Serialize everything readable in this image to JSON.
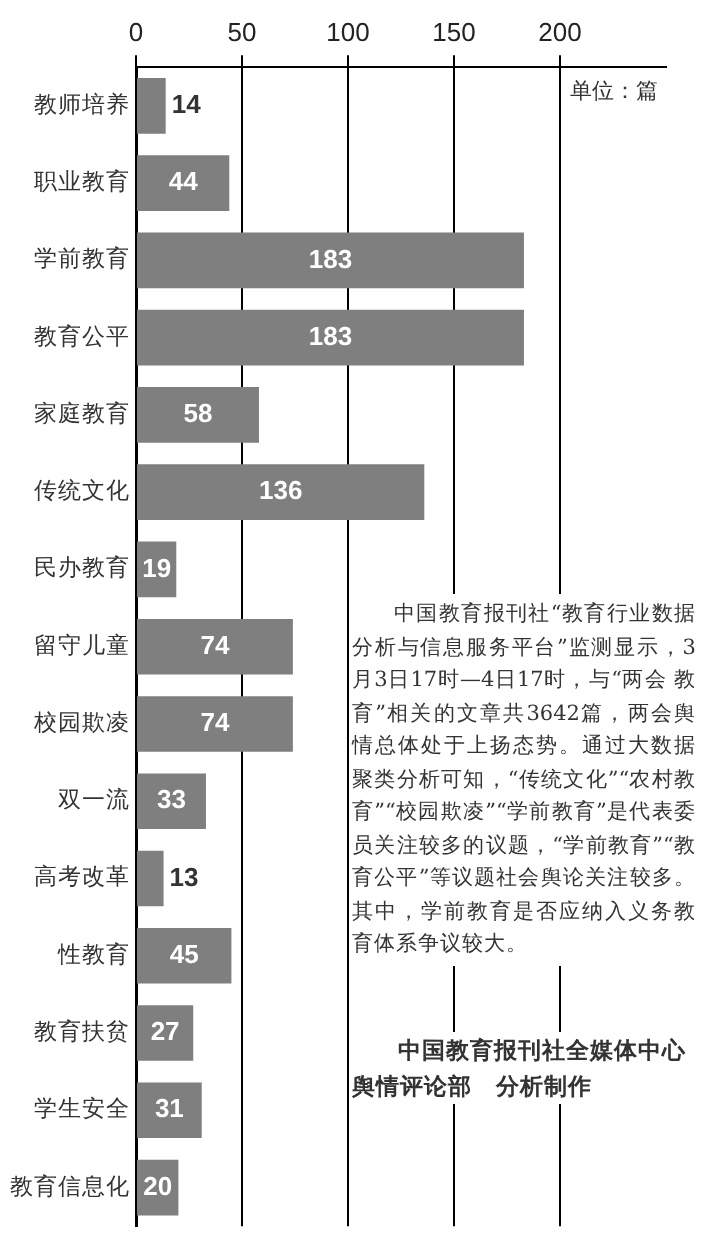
{
  "chart_data": {
    "type": "bar",
    "orientation": "horizontal",
    "categories": [
      "教师培养",
      "职业教育",
      "学前教育",
      "教育公平",
      "家庭教育",
      "传统文化",
      "民办教育",
      "留守儿童",
      "校园欺凌",
      "双一流",
      "高考改革",
      "性教育",
      "教育扶贫",
      "学生安全",
      "教育信息化"
    ],
    "values": [
      14,
      44,
      183,
      183,
      58,
      136,
      19,
      74,
      74,
      33,
      13,
      45,
      27,
      31,
      20
    ],
    "color": "#7f7f7f",
    "xlim": [
      0,
      250
    ],
    "xticks": [
      0,
      50,
      100,
      150,
      200
    ],
    "grid": "x",
    "data_labels": true,
    "annotations": [
      "单位：篇",
      "中国教育报刊社“教育行业数据分析与信息服务平台”监测显示，3月3日17时—4日17时，与“两会 教育”相关的文章共3642篇，两会舆情总体处于上扬态势。通过大数据聚类分析可知，“传统文化”“农村教育”“校园欺凌”“学前教育”是代表委员关注较多的议题，“学前教育”“教育公平”等议题社会舆论关注较多。其中，学前教育是否应纳入义务教育体系争议较大。",
      "中国教育报刊社全媒体中心舆情评论部　分析制作"
    ]
  }
}
